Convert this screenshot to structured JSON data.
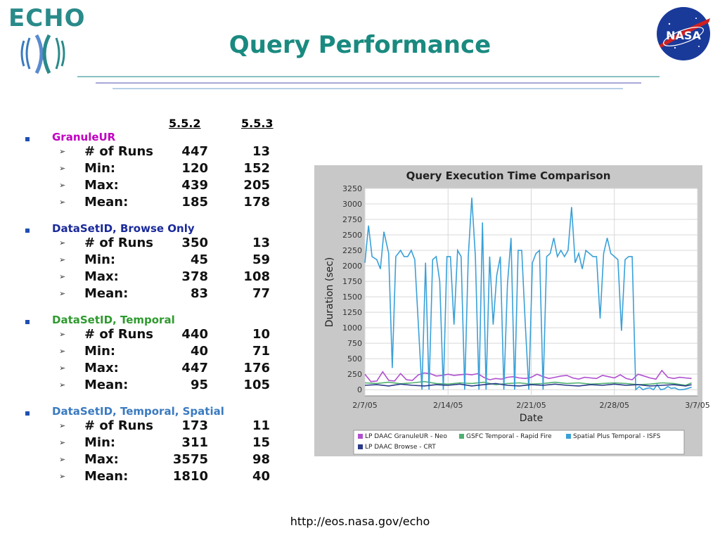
{
  "logo": {
    "text": "ECHO",
    "icon": "echo-waves-icon"
  },
  "title": "Query Performance",
  "nasa_logo": {
    "icon": "nasa-meatball-icon",
    "text": "NASA"
  },
  "columns": {
    "a": "5.5.2",
    "b": "5.5.3"
  },
  "groups": [
    {
      "name": "GranuleUR",
      "color": "#c000c0",
      "rows": [
        {
          "label": "# of Runs",
          "a": "447",
          "b": "13"
        },
        {
          "label": "Min:",
          "a": "120",
          "b": "152"
        },
        {
          "label": "Max:",
          "a": "439",
          "b": "205"
        },
        {
          "label": "Mean:",
          "a": "185",
          "b": "178"
        }
      ]
    },
    {
      "name": "DataSetID, Browse Only",
      "color": "#1a2a9a",
      "rows": [
        {
          "label": "# of Runs",
          "a": "350",
          "b": "13"
        },
        {
          "label": "Min:",
          "a": "45",
          "b": "59"
        },
        {
          "label": "Max:",
          "a": "378",
          "b": "108"
        },
        {
          "label": "Mean:",
          "a": "83",
          "b": "77"
        }
      ]
    },
    {
      "name": "DataSetID, Temporal",
      "color": "#2f9a2f",
      "rows": [
        {
          "label": "# of Runs",
          "a": "440",
          "b": "10"
        },
        {
          "label": "Min:",
          "a": "40",
          "b": "71"
        },
        {
          "label": "Max:",
          "a": "447",
          "b": "176"
        },
        {
          "label": "Mean:",
          "a": "95",
          "b": "105"
        }
      ]
    },
    {
      "name": "DataSetID, Temporal, Spatial",
      "color": "#3a7ac0",
      "rows": [
        {
          "label": "# of Runs",
          "a": "173",
          "b": "11"
        },
        {
          "label": "Min:",
          "a": "311",
          "b": "15"
        },
        {
          "label": "Max:",
          "a": "3575",
          "b": "98"
        },
        {
          "label": "Mean:",
          "a": "1810",
          "b": "40"
        }
      ]
    }
  ],
  "chart_data": {
    "type": "line",
    "title": "Query Execution Time Comparison",
    "xlabel": "Date",
    "ylabel": "Duration (sec)",
    "ylim": [
      -100,
      3250
    ],
    "yticks": [
      0,
      250,
      500,
      750,
      1000,
      1250,
      1500,
      1750,
      2000,
      2250,
      2500,
      2750,
      3000,
      3250
    ],
    "xlim": [
      "2/7/05",
      "3/7/05"
    ],
    "xticks": [
      "2/7/05",
      "2/14/05",
      "2/21/05",
      "2/28/05",
      "3/7/05"
    ],
    "grid": true,
    "legend_position": "bottom",
    "series": [
      {
        "name": "LP DAAC GranuleUR - Neo",
        "color": "#b050d0",
        "x": [
          0,
          0.5,
          1,
          1.5,
          2,
          2.5,
          3,
          3.5,
          4,
          4.5,
          5,
          5.5,
          6,
          6.5,
          7,
          7.5,
          8,
          8.5,
          9,
          9.5,
          10,
          10.5,
          11,
          11.5,
          12,
          12.5,
          13,
          13.5,
          14,
          14.5,
          15,
          15.5,
          16,
          16.5,
          17,
          17.5,
          18,
          18.5,
          19,
          19.5,
          20,
          20.5,
          21,
          21.5,
          22,
          22.5,
          23,
          23.5,
          24,
          24.5,
          25,
          25.5,
          26,
          26.5,
          27,
          27.5
        ],
        "y": [
          250,
          130,
          140,
          290,
          150,
          140,
          260,
          160,
          150,
          240,
          270,
          260,
          220,
          230,
          250,
          230,
          240,
          250,
          240,
          260,
          200,
          160,
          180,
          170,
          200,
          210,
          190,
          180,
          200,
          250,
          210,
          180,
          200,
          220,
          230,
          190,
          170,
          200,
          190,
          180,
          230,
          210,
          190,
          240,
          180,
          160,
          250,
          220,
          190,
          170,
          310,
          200,
          180,
          200,
          190,
          180
        ]
      },
      {
        "name": "GSFC Temporal - Rapid Fire",
        "color": "#50b070",
        "x": [
          0,
          1,
          2,
          3,
          4,
          5,
          6,
          7,
          8,
          9,
          10,
          11,
          12,
          13,
          14,
          15,
          16,
          17,
          18,
          19,
          20,
          21,
          22,
          23,
          24,
          25,
          26,
          27,
          27.5
        ],
        "y": [
          110,
          100,
          120,
          95,
          110,
          130,
          100,
          90,
          110,
          100,
          120,
          80,
          100,
          110,
          90,
          100,
          120,
          100,
          110,
          90,
          100,
          110,
          100,
          80,
          90,
          110,
          100,
          70,
          110
        ]
      },
      {
        "name": "Spatial Plus Temporal - ISFS",
        "color": "#3aa0d8",
        "x": [
          0,
          0.3,
          0.6,
          1,
          1.3,
          1.6,
          2,
          2.3,
          2.6,
          3,
          3.3,
          3.6,
          3.9,
          4.2,
          4.5,
          4.8,
          5.1,
          5.4,
          5.7,
          6,
          6.3,
          6.6,
          6.9,
          7.2,
          7.5,
          7.8,
          8.1,
          8.4,
          8.7,
          9,
          9.3,
          9.6,
          9.9,
          10.2,
          10.5,
          10.8,
          11.1,
          11.4,
          11.7,
          12,
          12.3,
          12.6,
          12.9,
          13.2,
          13.5,
          13.8,
          14.1,
          14.4,
          14.7,
          15,
          15.3,
          15.6,
          15.9,
          16.2,
          16.5,
          16.8,
          17.1,
          17.4,
          17.7,
          18,
          18.3,
          18.6,
          18.9,
          19.2,
          19.5,
          19.8,
          20.1,
          20.4,
          20.7,
          21,
          21.3,
          21.6,
          21.9,
          22.2,
          22.5,
          22.8,
          23.1,
          23.4,
          23.7,
          24,
          24.3,
          24.6,
          24.9,
          25.2,
          25.5,
          25.8,
          26.1,
          26.4,
          26.7,
          27,
          27.5
        ],
        "y": [
          2050,
          2650,
          2150,
          2100,
          1950,
          2550,
          2200,
          350,
          2150,
          2250,
          2150,
          2150,
          2250,
          2100,
          1050,
          0,
          2050,
          0,
          2100,
          2150,
          1750,
          0,
          2150,
          2150,
          1050,
          2250,
          2150,
          0,
          2150,
          3100,
          2150,
          0,
          2700,
          0,
          2150,
          1050,
          1850,
          2150,
          0,
          1700,
          2450,
          0,
          2250,
          2250,
          1050,
          0,
          2050,
          2200,
          2250,
          0,
          2150,
          2200,
          2450,
          2150,
          2250,
          2150,
          2250,
          2950,
          2050,
          2200,
          1950,
          2250,
          2200,
          2150,
          2150,
          1150,
          2200,
          2450,
          2200,
          2150,
          2100,
          950,
          2100,
          2150,
          2150,
          0,
          50,
          0,
          20,
          30,
          0,
          80,
          0,
          10,
          50,
          20,
          30,
          0,
          0,
          10,
          40
        ]
      },
      {
        "name": "LP DAAC Browse - CRT",
        "color": "#2a3a8a",
        "x": [
          0,
          1,
          2,
          3,
          4,
          5,
          6,
          7,
          8,
          9,
          10,
          11,
          12,
          13,
          14,
          15,
          16,
          17,
          18,
          19,
          20,
          21,
          22,
          23,
          24,
          25,
          26,
          27,
          27.5
        ],
        "y": [
          70,
          80,
          60,
          90,
          70,
          60,
          80,
          70,
          90,
          60,
          80,
          100,
          70,
          60,
          80,
          70,
          90,
          70,
          60,
          80,
          70,
          90,
          70,
          80,
          60,
          70,
          80,
          60,
          80
        ]
      }
    ]
  },
  "footer": "http://eos.nasa.gov/echo"
}
